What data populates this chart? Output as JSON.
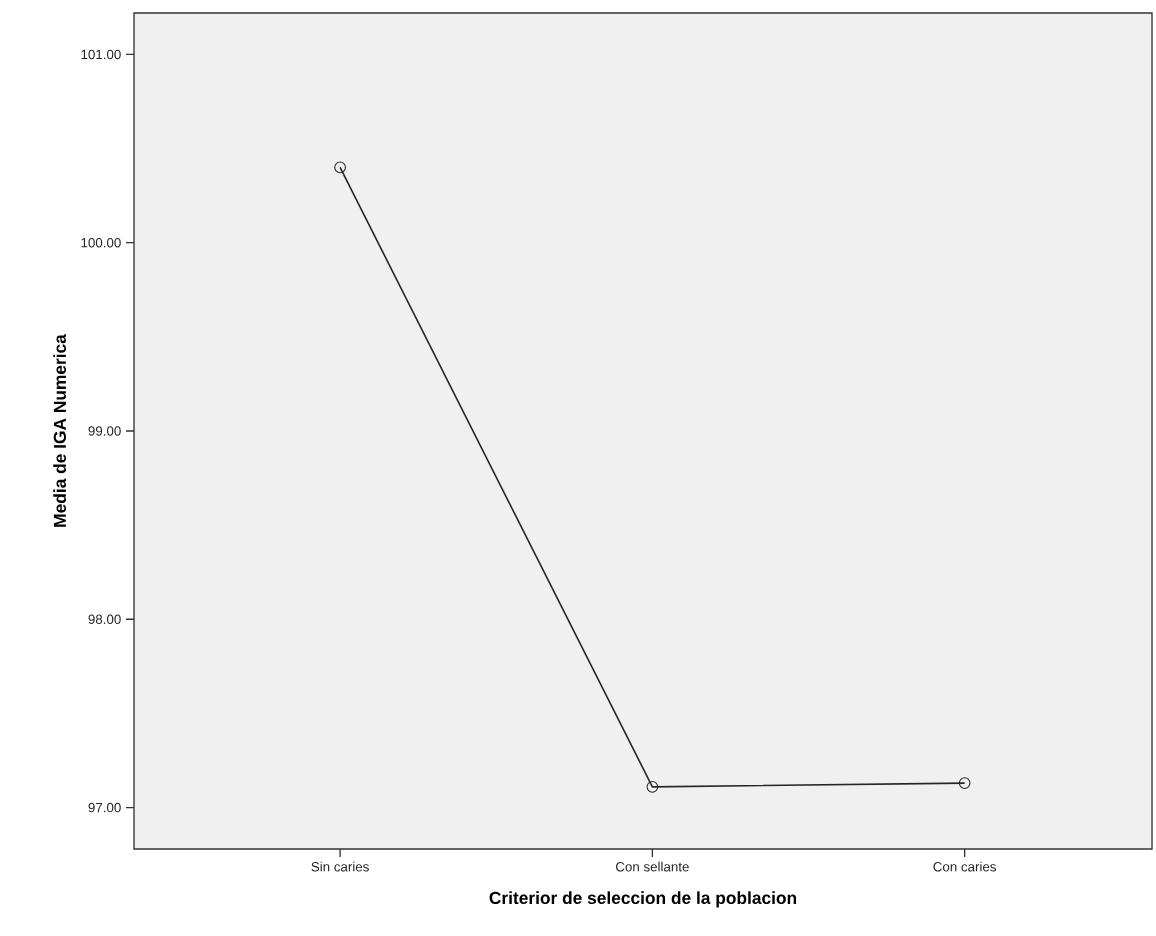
{
  "chart_data": {
    "type": "line",
    "xlabel": "Criterior de seleccion de la poblacion",
    "ylabel": "Media de IGA Numerica",
    "categories": [
      "Sin caries",
      "Con sellante",
      "Con caries"
    ],
    "series": [
      {
        "color": "#262626",
        "values": [
          100.4,
          97.11,
          97.13
        ]
      }
    ],
    "ylim": [
      96.78,
      101.22
    ],
    "yticks": [
      {
        "value": 97,
        "label": "97.00"
      },
      {
        "value": 98,
        "label": "98.00"
      },
      {
        "value": 99,
        "label": "99.00"
      },
      {
        "value": 100,
        "label": "100.00"
      },
      {
        "value": 101,
        "label": "101.00"
      }
    ],
    "marker": "circle",
    "line_style": "solid",
    "grid": false
  }
}
